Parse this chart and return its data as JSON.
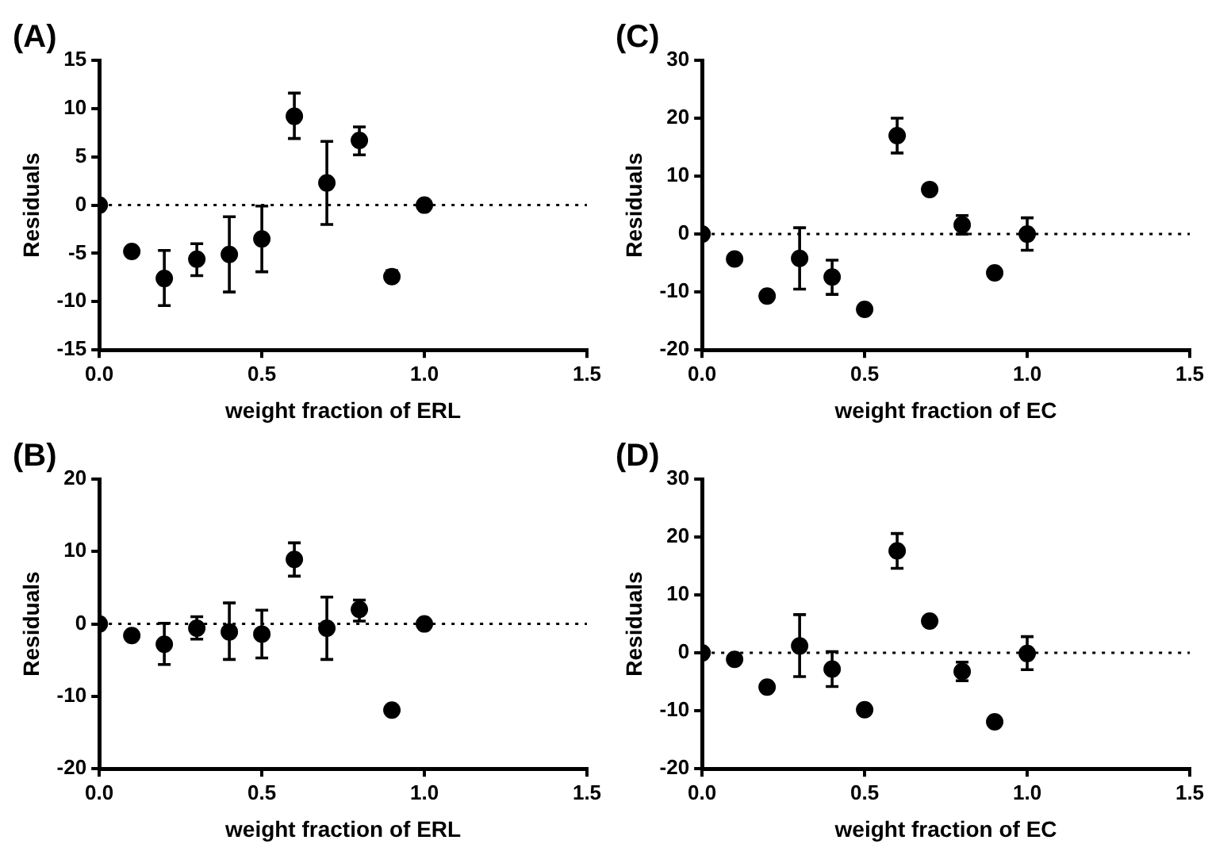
{
  "chart_data": [
    {
      "type": "scatter",
      "title": "(A)",
      "xlabel": "weight fraction of ERL",
      "ylabel": "Residuals",
      "x": [
        0,
        0.1,
        0.2,
        0.3,
        0.4,
        0.5,
        0.6,
        0.7,
        0.8,
        0.9,
        1.0
      ],
      "series": [
        {
          "color": "#000000",
          "values": [
            0,
            -4.8,
            -7.6,
            -5.6,
            -5.1,
            -3.5,
            9.2,
            2.3,
            6.7,
            -7.4,
            0
          ],
          "errors": [
            null,
            null,
            [
              -10.4,
              -4.7
            ],
            [
              -7.3,
              -4.0
            ],
            [
              -9.0,
              -1.2
            ],
            [
              -6.9,
              -0.1
            ],
            [
              6.9,
              11.6
            ],
            [
              -2.0,
              6.6
            ],
            [
              5.2,
              8.1
            ],
            [
              -7.9,
              -6.8
            ],
            null
          ]
        }
      ],
      "xlim": [
        0,
        1.5
      ],
      "xticks": [
        {
          "value": 0,
          "label": "0.0"
        },
        {
          "value": 0.5,
          "label": "0.5"
        },
        {
          "value": 1,
          "label": "1.0"
        },
        {
          "value": 1.5,
          "label": "1.5"
        }
      ],
      "ylim": [
        -15,
        15
      ],
      "yticks": [
        -15,
        -10,
        -5,
        0,
        5,
        10,
        15
      ],
      "ref_lines": [
        {
          "axis": "y",
          "value": 0,
          "line_style": "dotted"
        }
      ],
      "grid": false,
      "marker": "circle"
    },
    {
      "type": "scatter",
      "title": "(C)",
      "xlabel": "weight fraction of EC",
      "ylabel": "Residuals",
      "x": [
        0,
        0.1,
        0.2,
        0.3,
        0.4,
        0.5,
        0.6,
        0.7,
        0.8,
        0.9,
        1.0
      ],
      "series": [
        {
          "color": "#000000",
          "values": [
            0,
            -4.3,
            -10.7,
            -4.2,
            -7.4,
            -13.0,
            17.0,
            7.7,
            1.6,
            -6.7,
            0
          ],
          "errors": [
            null,
            null,
            null,
            [
              -9.5,
              1.1
            ],
            [
              -10.4,
              -4.5
            ],
            null,
            [
              14.0,
              20.0
            ],
            null,
            [
              0,
              3.2
            ],
            null,
            [
              -2.8,
              2.8
            ]
          ]
        }
      ],
      "xlim": [
        0,
        1.5
      ],
      "xticks": [
        {
          "value": 0,
          "label": "0.0"
        },
        {
          "value": 0.5,
          "label": "0.5"
        },
        {
          "value": 1,
          "label": "1.0"
        },
        {
          "value": 1.5,
          "label": "1.5"
        }
      ],
      "ylim": [
        -20,
        30
      ],
      "yticks": [
        -20,
        -10,
        0,
        10,
        20,
        30
      ],
      "ref_lines": [
        {
          "axis": "y",
          "value": 0,
          "line_style": "dotted"
        }
      ],
      "grid": false,
      "marker": "circle"
    },
    {
      "type": "scatter",
      "title": "(B)",
      "xlabel": "weight fraction of ERL",
      "ylabel": "Residuals",
      "x": [
        0,
        0.1,
        0.2,
        0.3,
        0.4,
        0.5,
        0.6,
        0.7,
        0.8,
        0.9,
        1.0
      ],
      "series": [
        {
          "color": "#000000",
          "values": [
            0,
            -1.6,
            -2.8,
            -0.6,
            -1.1,
            -1.4,
            8.9,
            -0.6,
            2.0,
            -11.9,
            0
          ],
          "errors": [
            null,
            null,
            [
              -5.6,
              0.1
            ],
            [
              -2.1,
              1.0
            ],
            [
              -4.9,
              2.9
            ],
            [
              -4.7,
              1.9
            ],
            [
              6.6,
              11.2
            ],
            [
              -4.9,
              3.7
            ],
            [
              0.4,
              3.3
            ],
            null,
            null
          ]
        }
      ],
      "xlim": [
        0,
        1.5
      ],
      "xticks": [
        {
          "value": 0,
          "label": "0.0"
        },
        {
          "value": 0.5,
          "label": "0.5"
        },
        {
          "value": 1,
          "label": "1.0"
        },
        {
          "value": 1.5,
          "label": "1.5"
        }
      ],
      "ylim": [
        -20,
        20
      ],
      "yticks": [
        -20,
        -10,
        0,
        10,
        20
      ],
      "ref_lines": [
        {
          "axis": "y",
          "value": 0,
          "line_style": "dotted"
        }
      ],
      "grid": false,
      "marker": "circle"
    },
    {
      "type": "scatter",
      "title": "(D)",
      "xlabel": "weight fraction of EC",
      "ylabel": "Residuals",
      "x": [
        0,
        0.1,
        0.2,
        0.3,
        0.4,
        0.5,
        0.6,
        0.7,
        0.8,
        0.9,
        1.0
      ],
      "series": [
        {
          "color": "#000000",
          "values": [
            0,
            -1.1,
            -5.9,
            1.2,
            -2.8,
            -9.8,
            17.6,
            5.5,
            -3.2,
            -11.9,
            -0.1
          ],
          "errors": [
            null,
            null,
            null,
            [
              -4.1,
              6.6
            ],
            [
              -5.8,
              0.2
            ],
            null,
            [
              14.6,
              20.6
            ],
            null,
            [
              -4.8,
              -1.6
            ],
            null,
            [
              -2.9,
              2.8
            ]
          ]
        }
      ],
      "xlim": [
        0,
        1.5
      ],
      "xticks": [
        {
          "value": 0,
          "label": "0.0"
        },
        {
          "value": 0.5,
          "label": "0.5"
        },
        {
          "value": 1,
          "label": "1.0"
        },
        {
          "value": 1.5,
          "label": "1.5"
        }
      ],
      "ylim": [
        -20,
        30
      ],
      "yticks": [
        -20,
        -10,
        0,
        10,
        20,
        30
      ],
      "ref_lines": [
        {
          "axis": "y",
          "value": 0,
          "line_style": "dotted"
        }
      ],
      "grid": false,
      "marker": "circle"
    }
  ]
}
